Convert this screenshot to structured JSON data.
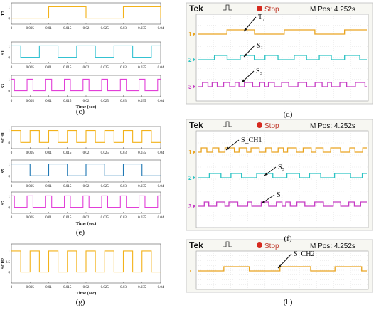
{
  "colors": {
    "yellow": "#f3b21a",
    "cyan": "#34c2d2",
    "magenta": "#e23fd8",
    "blue": "#1f78b4",
    "scope_yellow": "#e9a420",
    "scope_cyan": "#2cc3c4",
    "scope_magenta": "#c63cc4",
    "stop_red": "#d62a1f"
  },
  "captions": {
    "c": "(c)",
    "d": "(d)",
    "e": "(e)",
    "f": "(f)",
    "g": "(g)",
    "h": "(h)"
  },
  "scope": {
    "brand": "Tek",
    "stop_label": "Stop",
    "mpos": "M Pos: 4.252s"
  },
  "chart_data": [
    {
      "panel": "c",
      "type": "line",
      "xlabel": "Time (sec)",
      "xlim": [
        0,
        0.04
      ],
      "xticks": [
        "0",
        "0.005",
        "0.01",
        "0.015",
        "0.02",
        "0.025",
        "0.03",
        "0.035",
        "0.04"
      ],
      "series": [
        {
          "name": "T7",
          "color": "yellow",
          "yticks": [
            "1",
            "0"
          ],
          "edges": [
            0.01,
            0.02,
            0.03,
            0.04
          ],
          "start": 0
        },
        {
          "name": "S1",
          "color": "cyan",
          "yticks": [
            "1",
            "0"
          ],
          "edges": [
            0.0025,
            0.0075,
            0.0125,
            0.0175,
            0.0225,
            0.0275,
            0.0325,
            0.0375
          ],
          "start": 1
        },
        {
          "name": "S3",
          "color": "magenta",
          "yticks": [
            "1",
            "0"
          ],
          "edges": [
            0.0008,
            0.0042,
            0.0058,
            0.0092,
            0.0108,
            0.0142,
            0.0158,
            0.0192,
            0.0208,
            0.0242,
            0.0258,
            0.0292,
            0.0308,
            0.0342,
            0.0358,
            0.0392
          ],
          "start": 1
        }
      ]
    },
    {
      "panel": "e",
      "type": "line",
      "xlabel": "Time (sec)",
      "xlim": [
        0,
        0.04
      ],
      "xticks": [
        "0",
        "0.005",
        "0.01",
        "0.015",
        "0.02",
        "0.025",
        "0.03",
        "0.035",
        "0.04"
      ],
      "series": [
        {
          "name": "SCH1",
          "color": "yellow",
          "yticks": [
            "1",
            "0"
          ],
          "edges": [
            0.0025,
            0.005,
            0.0075,
            0.01,
            0.0125,
            0.015,
            0.0175,
            0.02,
            0.0225,
            0.025,
            0.0275,
            0.03,
            0.0325,
            0.035,
            0.0375
          ],
          "start": 1
        },
        {
          "name": "S5",
          "color": "blue",
          "yticks": [
            "1",
            "0"
          ],
          "edges": [
            0.005,
            0.01,
            0.015,
            0.02,
            0.025,
            0.03,
            0.035
          ],
          "start": 1
        },
        {
          "name": "S7",
          "color": "magenta",
          "yticks": [
            "1",
            "0"
          ],
          "edges": [
            0.0008,
            0.0042,
            0.0058,
            0.0092,
            0.0108,
            0.0142,
            0.0158,
            0.0192,
            0.0208,
            0.0242,
            0.0258,
            0.0292,
            0.0308,
            0.0342,
            0.0358,
            0.0392
          ],
          "start": 1
        }
      ]
    },
    {
      "panel": "g",
      "type": "line",
      "xlabel": "Time (sec)",
      "xlim": [
        0,
        0.04
      ],
      "xticks": [
        "0",
        "0.005",
        "0.01",
        "0.015",
        "0.02",
        "0.025",
        "0.03",
        "0.035",
        "0.04"
      ],
      "series": [
        {
          "name": "SCH2",
          "color": "yellow",
          "yticks": [
            "1",
            "0.5",
            "0"
          ],
          "edges": [
            0.0025,
            0.005,
            0.0075,
            0.01,
            0.0125,
            0.015,
            0.0175,
            0.02,
            0.0225,
            0.025,
            0.0275,
            0.03,
            0.0325,
            0.035,
            0.0375
          ],
          "start": 1
        }
      ]
    },
    {
      "panel": "d",
      "type": "line",
      "series": [
        {
          "name": "T7",
          "label": "T₇",
          "channel": "1",
          "color": "scope_yellow"
        },
        {
          "name": "S1",
          "label": "S₁",
          "channel": "2",
          "color": "scope_cyan"
        },
        {
          "name": "S3",
          "label": "S₃",
          "channel": "3",
          "color": "scope_magenta"
        }
      ]
    },
    {
      "panel": "f",
      "type": "line",
      "series": [
        {
          "name": "SCH1",
          "label": "S_CH1",
          "channel": "1",
          "color": "scope_yellow"
        },
        {
          "name": "S5",
          "label": "S₅",
          "channel": "2",
          "color": "scope_cyan"
        },
        {
          "name": "S7",
          "label": "S₇",
          "channel": "3",
          "color": "scope_magenta"
        }
      ]
    },
    {
      "panel": "h",
      "type": "line",
      "series": [
        {
          "name": "SCH2",
          "label": "S_CH2",
          "channel": "",
          "color": "scope_yellow"
        }
      ]
    }
  ]
}
